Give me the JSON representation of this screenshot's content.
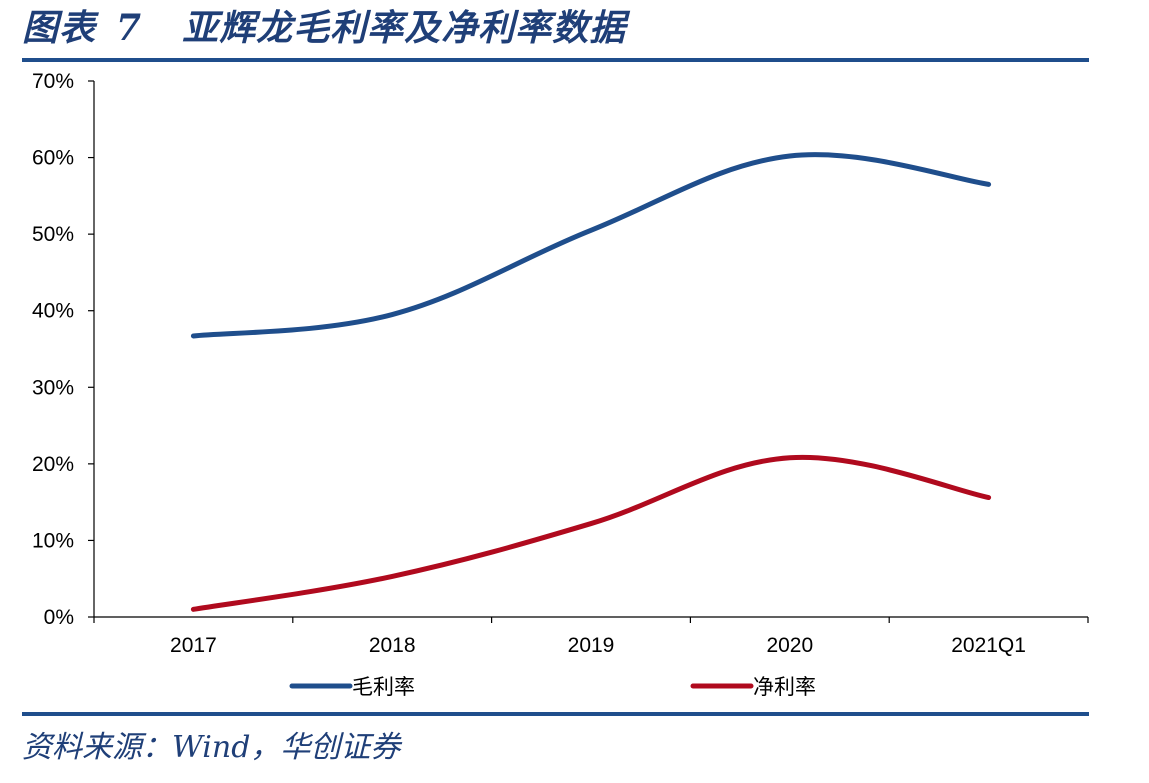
{
  "header": {
    "figure_label": "图表",
    "figure_number": "7",
    "title": "亚辉龙毛利率及净利率数据"
  },
  "footer": {
    "source": "资料来源：Wind，华创证券"
  },
  "chart_data": {
    "type": "line",
    "title": "亚辉龙毛利率及净利率数据",
    "xlabel": "",
    "ylabel": "",
    "categories": [
      "2017",
      "2018",
      "2019",
      "2020",
      "2021Q1"
    ],
    "series": [
      {
        "name": "毛利率",
        "color": "#1f4e8c",
        "values": [
          36.7,
          39.5,
          50.5,
          60.2,
          56.5
        ]
      },
      {
        "name": "净利率",
        "color": "#b00a1e",
        "values": [
          1.0,
          5.3,
          12.2,
          20.8,
          15.6
        ]
      }
    ],
    "ylim": [
      0,
      70
    ],
    "yticks": [
      0,
      10,
      20,
      30,
      40,
      50,
      60,
      70
    ],
    "ytick_labels": [
      "0%",
      "10%",
      "20%",
      "30%",
      "40%",
      "50%",
      "60%",
      "70%"
    ],
    "smooth": true,
    "grid": false,
    "legend_position": "bottom"
  }
}
